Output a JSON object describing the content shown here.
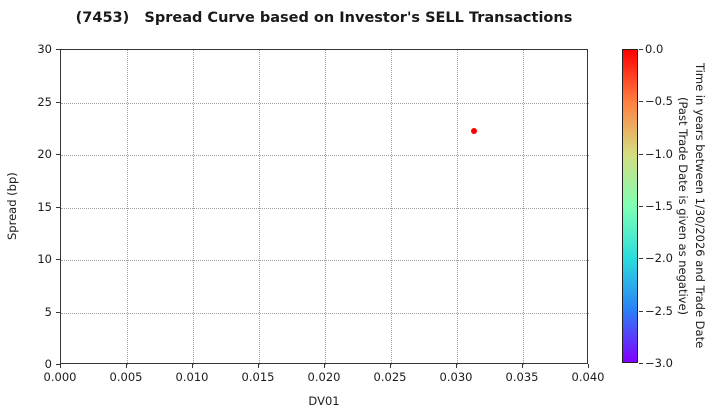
{
  "title": "(7453)   Spread Curve based on Investor's SELL Transactions",
  "chart_data": {
    "type": "scatter",
    "title": "(7453)   Spread Curve based on Investor's SELL Transactions",
    "xlabel": "DV01",
    "ylabel": "Spread (bp)",
    "xlim": [
      0.0,
      0.04
    ],
    "ylim": [
      0,
      30
    ],
    "x_ticks": [
      0.0,
      0.005,
      0.01,
      0.015,
      0.02,
      0.025,
      0.03,
      0.035,
      0.04
    ],
    "x_tick_labels": [
      "0.000",
      "0.005",
      "0.010",
      "0.015",
      "0.020",
      "0.025",
      "0.030",
      "0.035",
      "0.040"
    ],
    "y_ticks": [
      0,
      5,
      10,
      15,
      20,
      25,
      30
    ],
    "y_tick_labels": [
      "0",
      "5",
      "10",
      "15",
      "20",
      "25",
      "30"
    ],
    "grid": true,
    "grid_style": "dotted",
    "legend": "none",
    "points": [
      {
        "x": 0.0314,
        "y": 22.2,
        "color": "#ff0000"
      }
    ],
    "colorbar": {
      "label": "Time in years between 1/30/2026 and Trade Date\n(Past Trade Date is given as negative)",
      "vmax": 0.0,
      "vmin": -3.0,
      "ticks": [
        0.0,
        -0.5,
        -1.0,
        -1.5,
        -2.0,
        -2.5,
        -3.0
      ],
      "tick_labels": [
        "0.0",
        "−0.5",
        "−1.0",
        "−1.5",
        "−2.0",
        "−2.5",
        "−3.0"
      ],
      "colormap": "rainbow",
      "gradient_top_to_bottom": [
        "#ff0000",
        "#ff8042",
        "#d5dd80",
        "#80ffb4",
        "#2bdddd",
        "#2b80f6",
        "#8000ff"
      ]
    },
    "colors": {
      "marker": "#ff0000",
      "grid": "#a0a0a0",
      "spine": "#363636",
      "text": "#1c1c1c"
    }
  }
}
